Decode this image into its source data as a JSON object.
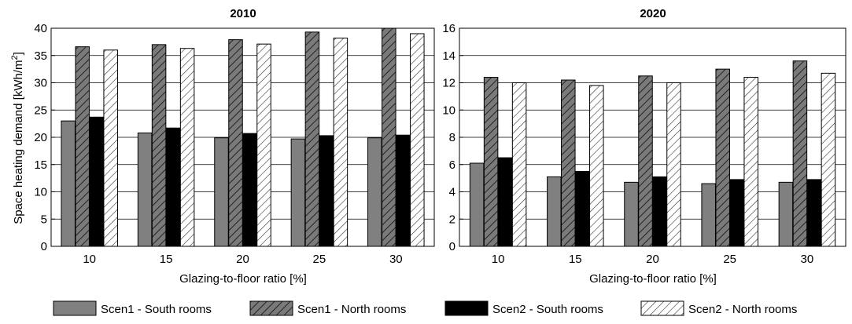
{
  "chart_data": [
    {
      "type": "bar",
      "title": "2010",
      "xlabel": "Glazing-to-floor ratio [%]",
      "ylabel": "Space heating demand [kWh/m",
      "ylabel_sup": "2",
      "ylabel_end": "]",
      "categories": [
        "10",
        "15",
        "20",
        "25",
        "30"
      ],
      "ylim": [
        0,
        40
      ],
      "yticks": [
        "0",
        "5",
        "10",
        "15",
        "20",
        "25",
        "30",
        "35",
        "40"
      ],
      "grid": "horizontal",
      "series": [
        {
          "name": "Scen1 - South rooms",
          "values": [
            23.0,
            20.8,
            19.9,
            19.7,
            19.9
          ]
        },
        {
          "name": "Scen1 - North rooms",
          "values": [
            36.6,
            37.0,
            37.9,
            39.3,
            40.0
          ]
        },
        {
          "name": "Scen2 - South rooms",
          "values": [
            23.7,
            21.7,
            20.7,
            20.3,
            20.4
          ]
        },
        {
          "name": "Scen2 - North rooms",
          "values": [
            36.0,
            36.3,
            37.1,
            38.2,
            39.0
          ]
        }
      ]
    },
    {
      "type": "bar",
      "title": "2020",
      "xlabel": "Glazing-to-floor ratio [%]",
      "ylabel": "",
      "categories": [
        "10",
        "15",
        "20",
        "25",
        "30"
      ],
      "ylim": [
        0,
        16
      ],
      "yticks": [
        "0",
        "2",
        "4",
        "6",
        "8",
        "10",
        "12",
        "14",
        "16"
      ],
      "grid": "horizontal",
      "series": [
        {
          "name": "Scen1 - South rooms",
          "values": [
            6.1,
            5.1,
            4.7,
            4.6,
            4.7
          ]
        },
        {
          "name": "Scen1 - North rooms",
          "values": [
            12.4,
            12.2,
            12.5,
            13.0,
            13.6
          ]
        },
        {
          "name": "Scen2 - South rooms",
          "values": [
            6.5,
            5.5,
            5.1,
            4.9,
            4.9
          ]
        },
        {
          "name": "Scen2 - North rooms",
          "values": [
            12.0,
            11.8,
            12.0,
            12.4,
            12.7
          ]
        }
      ]
    }
  ],
  "legend": {
    "position": "bottom",
    "items": [
      {
        "label": "Scen1 - South rooms",
        "style": "solid",
        "color": "#808080"
      },
      {
        "label": "Scen1 - North rooms",
        "style": "hatch",
        "color": "#6e6e6e"
      },
      {
        "label": "Scen2 - South rooms",
        "style": "solid",
        "color": "#000000"
      },
      {
        "label": "Scen2 - North rooms",
        "style": "hatch",
        "color": "#ffffff"
      }
    ]
  }
}
